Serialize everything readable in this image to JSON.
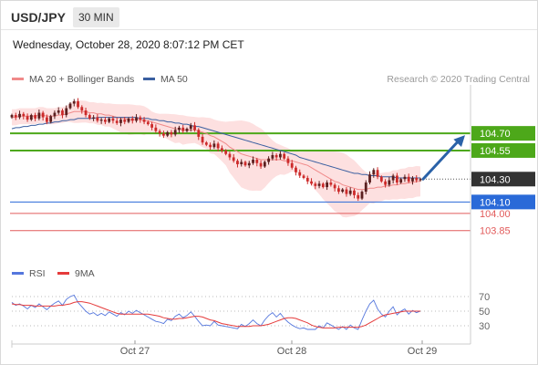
{
  "header": {
    "symbol": "USD/JPY",
    "timeframe": "30 MIN"
  },
  "date_label": "Wednesday, October 28, 2020 8:07:12 PM CET",
  "legend": [
    {
      "label": "MA 20 + Bollinger Bands",
      "color": "#f08a8a"
    },
    {
      "label": "MA 50",
      "color": "#3a5fa0"
    }
  ],
  "credit": "Research © 2020 Trading Central",
  "rsi_legend": [
    {
      "label": "RSI",
      "color": "#5577dd"
    },
    {
      "label": "9MA",
      "color": "#e53b3b"
    }
  ],
  "colors": {
    "resistance": "#4da81a",
    "support_blue": "#2a6ad8",
    "support_red": "#e25b5b",
    "current": "#333333",
    "arrow": "#2a62a8",
    "bb_fill": "#fde0e0",
    "candle_up": "#5a1f1f",
    "candle_down": "#cc2a2a"
  },
  "chart_data": [
    {
      "type": "candlestick",
      "y_range": [
        103.72,
        105.06
      ],
      "x_ticks": [
        "Oct 27",
        "Oct 28",
        "Oct 29"
      ],
      "current_price": 104.3,
      "levels": [
        {
          "value": 104.7,
          "label": "104.70",
          "kind": "resistance"
        },
        {
          "value": 104.55,
          "label": "104.55",
          "kind": "resistance"
        },
        {
          "value": 104.3,
          "label": "104.30",
          "kind": "current"
        },
        {
          "value": 104.1,
          "label": "104.10",
          "kind": "support_blue"
        },
        {
          "value": 104.0,
          "label": "104.00",
          "kind": "support_red"
        },
        {
          "value": 103.85,
          "label": "103.85",
          "kind": "support_red"
        }
      ],
      "projection": {
        "from": 104.3,
        "to": 104.7
      },
      "close": [
        104.86,
        104.84,
        104.87,
        104.85,
        104.82,
        104.86,
        104.83,
        104.88,
        104.84,
        104.8,
        104.85,
        104.88,
        104.9,
        104.86,
        104.92,
        104.96,
        104.98,
        104.93,
        104.9,
        104.86,
        104.83,
        104.84,
        104.81,
        104.82,
        104.8,
        104.83,
        104.81,
        104.79,
        104.82,
        104.8,
        104.83,
        104.81,
        104.84,
        104.82,
        104.8,
        104.78,
        104.75,
        104.72,
        104.7,
        104.68,
        104.71,
        104.69,
        104.73,
        104.75,
        104.72,
        104.74,
        104.77,
        104.73,
        104.67,
        104.62,
        104.6,
        104.58,
        104.61,
        104.57,
        104.55,
        104.52,
        104.49,
        104.46,
        104.43,
        104.45,
        104.42,
        104.44,
        104.47,
        104.44,
        104.41,
        104.45,
        104.48,
        104.51,
        104.49,
        104.52,
        104.48,
        104.44,
        104.4,
        104.36,
        104.33,
        104.31,
        104.28,
        104.26,
        104.24,
        104.26,
        104.23,
        104.27,
        104.25,
        104.22,
        104.19,
        104.21,
        104.17,
        104.2,
        104.16,
        104.13,
        104.19,
        104.27,
        104.34,
        104.38,
        104.32,
        104.28,
        104.25,
        104.29,
        104.33,
        104.27,
        104.3,
        104.32,
        104.28,
        104.31,
        104.29,
        104.3
      ],
      "ma20": [
        104.84,
        104.84,
        104.85,
        104.85,
        104.85,
        104.85,
        104.85,
        104.86,
        104.86,
        104.85,
        104.85,
        104.85,
        104.86,
        104.86,
        104.87,
        104.88,
        104.89,
        104.89,
        104.89,
        104.89,
        104.88,
        104.88,
        104.87,
        104.87,
        104.86,
        104.86,
        104.85,
        104.84,
        104.83,
        104.83,
        104.82,
        104.82,
        104.82,
        104.82,
        104.81,
        104.81,
        104.8,
        104.79,
        104.78,
        104.77,
        104.76,
        104.75,
        104.74,
        104.74,
        104.73,
        104.73,
        104.73,
        104.73,
        104.72,
        104.71,
        104.7,
        104.68,
        104.67,
        104.65,
        104.63,
        104.61,
        104.58,
        104.56,
        104.54,
        104.52,
        104.51,
        104.5,
        104.49,
        104.48,
        104.47,
        104.47,
        104.47,
        104.47,
        104.47,
        104.47,
        104.46,
        104.46,
        104.46,
        104.45,
        104.44,
        104.43,
        104.42,
        104.4,
        104.38,
        104.36,
        104.34,
        104.32,
        104.3,
        104.28,
        104.27,
        104.25,
        104.24,
        104.23,
        104.22,
        104.21,
        104.21,
        104.21,
        104.22,
        104.22,
        104.23,
        104.23,
        104.24,
        104.24,
        104.25,
        104.25,
        104.26,
        104.26,
        104.27,
        104.27,
        104.28,
        104.28
      ],
      "ma50": [
        104.74,
        104.75,
        104.75,
        104.76,
        104.76,
        104.77,
        104.77,
        104.78,
        104.78,
        104.79,
        104.79,
        104.8,
        104.8,
        104.81,
        104.81,
        104.82,
        104.82,
        104.83,
        104.83,
        104.83,
        104.83,
        104.83,
        104.84,
        104.84,
        104.84,
        104.84,
        104.84,
        104.84,
        104.84,
        104.84,
        104.84,
        104.84,
        104.84,
        104.83,
        104.83,
        104.83,
        104.82,
        104.82,
        104.81,
        104.81,
        104.8,
        104.8,
        104.79,
        104.79,
        104.78,
        104.78,
        104.77,
        104.76,
        104.76,
        104.75,
        104.74,
        104.73,
        104.72,
        104.71,
        104.7,
        104.69,
        104.68,
        104.67,
        104.66,
        104.65,
        104.64,
        104.63,
        104.62,
        104.61,
        104.6,
        104.59,
        104.58,
        104.57,
        104.56,
        104.55,
        104.54,
        104.53,
        104.52,
        104.51,
        104.49,
        104.48,
        104.47,
        104.46,
        104.45,
        104.44,
        104.43,
        104.42,
        104.41,
        104.4,
        104.39,
        104.38,
        104.37,
        104.36,
        104.35,
        104.35,
        104.34,
        104.34,
        104.33,
        104.33,
        104.33,
        104.32,
        104.32,
        104.32,
        104.32,
        104.31,
        104.31,
        104.31,
        104.31,
        104.31,
        104.31,
        104.31
      ]
    },
    {
      "type": "line",
      "y_ticks": [
        70,
        50,
        30
      ],
      "rsi": [
        62,
        58,
        60,
        57,
        53,
        58,
        55,
        60,
        56,
        52,
        57,
        61,
        64,
        58,
        66,
        70,
        72,
        62,
        56,
        50,
        46,
        48,
        44,
        47,
        44,
        49,
        46,
        43,
        48,
        45,
        50,
        47,
        51,
        48,
        45,
        42,
        39,
        36,
        35,
        33,
        39,
        37,
        43,
        46,
        41,
        44,
        49,
        43,
        36,
        30,
        31,
        30,
        36,
        31,
        30,
        29,
        28,
        27,
        26,
        32,
        29,
        33,
        38,
        33,
        30,
        38,
        44,
        48,
        42,
        47,
        40,
        35,
        31,
        28,
        26,
        27,
        25,
        25,
        25,
        30,
        27,
        34,
        31,
        28,
        25,
        29,
        25,
        31,
        27,
        25,
        38,
        50,
        60,
        65,
        53,
        46,
        42,
        50,
        56,
        45,
        50,
        53,
        46,
        51,
        48,
        50
      ],
      "ma9": [
        60,
        59,
        59,
        58,
        58,
        58,
        57,
        57,
        57,
        57,
        57,
        57,
        58,
        58,
        59,
        60,
        62,
        63,
        63,
        62,
        61,
        59,
        57,
        55,
        53,
        51,
        49,
        47,
        46,
        46,
        46,
        46,
        46,
        46,
        46,
        46,
        45,
        44,
        43,
        41,
        40,
        39,
        39,
        40,
        40,
        41,
        42,
        43,
        43,
        42,
        40,
        38,
        37,
        35,
        33,
        32,
        31,
        30,
        29,
        29,
        29,
        29,
        30,
        30,
        30,
        31,
        32,
        34,
        36,
        38,
        40,
        41,
        41,
        40,
        38,
        36,
        34,
        31,
        29,
        28,
        27,
        27,
        27,
        27,
        28,
        28,
        28,
        28,
        28,
        28,
        29,
        31,
        34,
        37,
        40,
        43,
        45,
        46,
        47,
        48,
        49,
        50,
        50,
        50,
        50,
        50
      ]
    }
  ]
}
